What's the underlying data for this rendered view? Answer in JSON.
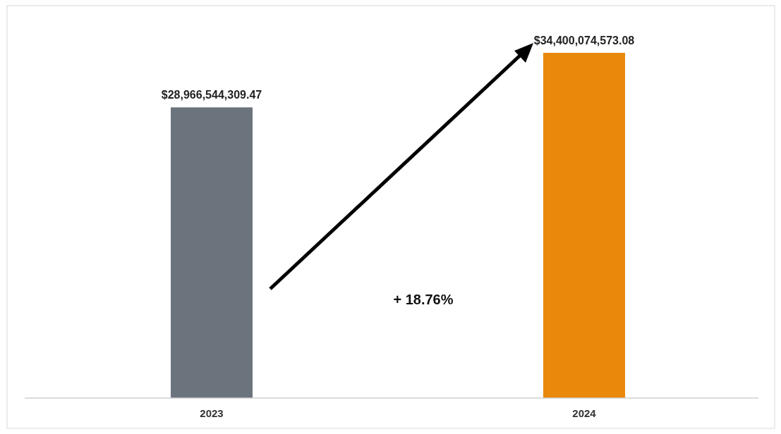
{
  "chart_data": {
    "type": "bar",
    "categories": [
      "2023",
      "2024"
    ],
    "values": [
      28966544309.47,
      34400074573.08
    ],
    "colors": [
      "#6b737d",
      "#e8890c"
    ],
    "value_labels": [
      "$28,966,544,309.47",
      "$34,400,074,573.08"
    ],
    "annotations": [
      "+ 18.76%"
    ]
  }
}
